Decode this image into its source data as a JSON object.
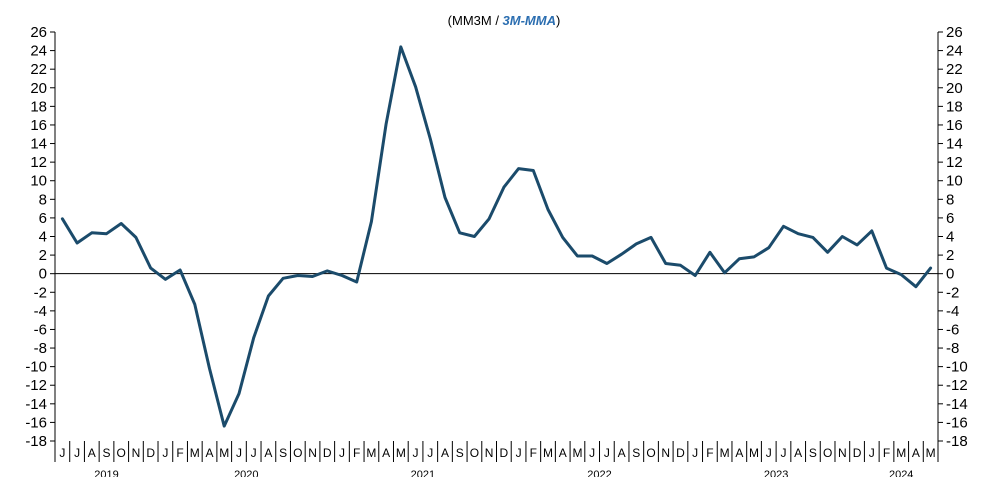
{
  "chart_data": {
    "type": "line",
    "title_prefix": "(MM3M / ",
    "title_emphasis": "3M-MMA",
    "title_suffix": ")",
    "ylim": [
      -18,
      26
    ],
    "ytick_step": 2,
    "y_axes": "left and right (duplicated)",
    "grid": false,
    "zero_line": true,
    "line_color": "#1b4b6b",
    "accent_color": "#2a6db0",
    "months": [
      "J",
      "J",
      "A",
      "S",
      "O",
      "N",
      "D",
      "J",
      "F",
      "M",
      "A",
      "M",
      "J",
      "J",
      "A",
      "S",
      "O",
      "N",
      "D",
      "J",
      "F",
      "M",
      "A",
      "M",
      "J",
      "J",
      "A",
      "S",
      "O",
      "N",
      "D",
      "J",
      "F",
      "M",
      "A",
      "M",
      "J",
      "J",
      "A",
      "S",
      "O",
      "N",
      "D",
      "J",
      "F",
      "M",
      "A",
      "M",
      "J",
      "J",
      "A",
      "S",
      "O",
      "N",
      "D",
      "J",
      "F",
      "M",
      "A",
      "M"
    ],
    "years": [
      {
        "label": "2019",
        "months": 7
      },
      {
        "label": "2020",
        "months": 12
      },
      {
        "label": "2021",
        "months": 12
      },
      {
        "label": "2022",
        "months": 12
      },
      {
        "label": "2023",
        "months": 12
      },
      {
        "label": "2024",
        "months": 5
      }
    ],
    "series": [
      {
        "values": [
          5.9,
          3.3,
          4.4,
          4.3,
          5.4,
          3.9,
          0.6,
          -0.6,
          0.4,
          -3.3,
          -10.2,
          -16.4,
          -12.9,
          -6.9,
          -2.4,
          -0.5,
          -0.2,
          -0.3,
          0.3,
          -0.2,
          -0.9,
          5.6,
          16.1,
          24.4,
          20.1,
          14.5,
          8.2,
          4.4,
          4.0,
          5.9,
          9.3,
          11.3,
          11.1,
          6.9,
          3.9,
          1.9,
          1.9,
          1.1,
          2.1,
          3.2,
          3.9,
          1.1,
          0.9,
          -0.2,
          2.3,
          0.1,
          1.6,
          1.8,
          2.8,
          5.1,
          4.3,
          3.9,
          2.3,
          4.0,
          3.1,
          4.6,
          0.6,
          -0.1,
          -1.4,
          0.6
        ]
      }
    ]
  }
}
